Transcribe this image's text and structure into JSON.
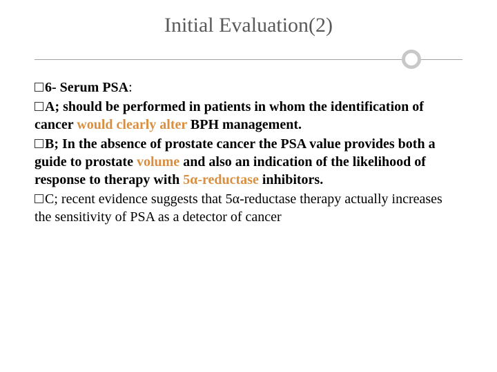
{
  "title": "Initial Evaluation(2)",
  "colors": {
    "title_color": "#595959",
    "body_color": "#000000",
    "accent_color": "#d98f3f",
    "divider_line": "#a0a0a0",
    "divider_circle": "#c8c8c8",
    "background": "#ffffff"
  },
  "typography": {
    "title_fontsize": 30,
    "body_fontsize": 20,
    "font_family": "Georgia, serif"
  },
  "lines": {
    "l1_num": "6- ",
    "l1_bold": "Serum PSA",
    "l1_colon": ":",
    "l2_prefix": "A; ",
    "l2_bold_a": "should be performed in patients in whom the identification of cancer ",
    "l2_orange": "would clearly alter ",
    "l2_bold_b": "BPH management.",
    "l3_prefix": "B; ",
    "l3_bold_a": "In the absence of prostate cancer ",
    "l3_normal_a": "the PSA value provides both a guide to prostate ",
    "l3_orange_a": "volume ",
    "l3_bold_b": "and also an indication of the likelihood of response to therapy with ",
    "l3_orange_b": "5α-reductase ",
    "l3_bold_c": "inhibitors.",
    "l4_prefix": "C; ",
    "l4_text": "recent evidence suggests that 5α-reductase therapy actually increases the sensitivity of PSA as a detector of cancer"
  }
}
